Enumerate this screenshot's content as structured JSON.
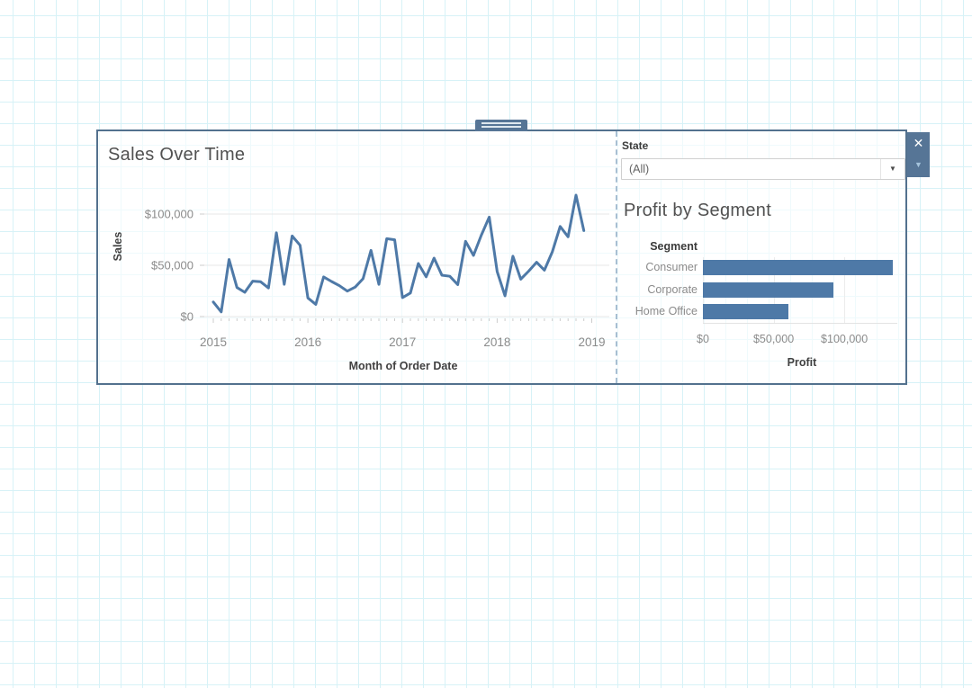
{
  "theme": {
    "accent": "#4e79a7",
    "frame": "#53718e",
    "toolbar": "#567596",
    "paper_grid_line": "#d7f2f7"
  },
  "selection_toolbar": {
    "close_icon": "✕",
    "menu_caret_icon": "▼"
  },
  "filter": {
    "label": "State",
    "value": "(All)",
    "caret_icon": "▼"
  },
  "chart_data": [
    {
      "type": "line",
      "title": "Sales Over Time",
      "xlabel": "Month of Order Date",
      "ylabel": "Sales",
      "x_axis": {
        "start": "Jan 2015",
        "end": "Dec 2018",
        "interval": "month"
      },
      "x_tick_labels": [
        "2015",
        "2016",
        "2017",
        "2018",
        "2019"
      ],
      "y_ticks": [
        {
          "label": "$0",
          "value": 0
        },
        {
          "label": "$50,000",
          "value": 50000
        },
        {
          "label": "$100,000",
          "value": 100000
        }
      ],
      "ylim": [
        0,
        125000
      ],
      "grid": "horizontal",
      "line_color": "#4e79a7",
      "values": [
        14237,
        4520,
        55691,
        28295,
        23648,
        34595,
        33946,
        27909,
        81777,
        31453,
        78629,
        69546,
        18174,
        11951,
        38726,
        34195,
        30131,
        24797,
        28765,
        36898,
        64595,
        31404,
        75973,
        74920,
        18542,
        22978,
        51715,
        38750,
        56988,
        40344,
        39262,
        31115,
        73410,
        59688,
        79412,
        96999,
        43971,
        20301,
        58872,
        36522,
        44261,
        52982,
        45264,
        63121,
        87867,
        77777,
        118448,
        83829
      ]
    },
    {
      "type": "bar",
      "title": "Profit by Segment",
      "xlabel": "Profit",
      "row_header": "Segment",
      "categories": [
        "Consumer",
        "Corporate",
        "Home Office"
      ],
      "values": [
        134119,
        91979,
        60299
      ],
      "x_ticks": [
        {
          "label": "$0",
          "value": 0
        },
        {
          "label": "$50,000",
          "value": 50000
        },
        {
          "label": "$100,000",
          "value": 100000
        }
      ],
      "xlim": [
        0,
        140000
      ],
      "orientation": "horizontal",
      "bar_color": "#4e79a7"
    }
  ]
}
